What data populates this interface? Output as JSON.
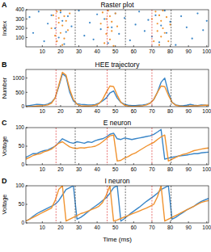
{
  "chart_data": [
    {
      "type": "scatter",
      "panel_label": "A",
      "title": "Raster plot",
      "ylabel": "Index",
      "xlim": [
        1,
        101
      ],
      "ylim": [
        0,
        400
      ],
      "xticks": [
        10,
        20,
        30,
        40,
        50,
        60,
        70,
        80,
        90,
        100
      ],
      "yticks": [
        100,
        200,
        300,
        400
      ],
      "marker": "dot",
      "vlines": [
        {
          "x": 17.5,
          "color": "#e03c3c",
          "line_style": "dashed"
        },
        {
          "x": 28,
          "color": "#333333",
          "line_style": "dashed"
        },
        {
          "x": 45.5,
          "color": "#e03c3c",
          "line_style": "dashed"
        },
        {
          "x": 55.5,
          "color": "#333333",
          "line_style": "dashed"
        },
        {
          "x": 70,
          "color": "#e03c3c",
          "line_style": "dashed"
        },
        {
          "x": 80.5,
          "color": "#333333",
          "line_style": "dashed"
        }
      ],
      "series": [
        {
          "color": "#3a86c8",
          "x": [
            3,
            5,
            8,
            11,
            13,
            15,
            17,
            19,
            20,
            21,
            22,
            23,
            24,
            26,
            30,
            33,
            36,
            38,
            40,
            42,
            44,
            46,
            48,
            50,
            52,
            55,
            58,
            61,
            63,
            66,
            68,
            70,
            72,
            74,
            75,
            77,
            78,
            80,
            83,
            86,
            89,
            92,
            95,
            98,
            100
          ],
          "values": [
            320,
            150,
            380,
            60,
            250,
            340,
            200,
            100,
            370,
            280,
            30,
            160,
            330,
            220,
            390,
            120,
            260,
            80,
            350,
            190,
            300,
            40,
            210,
            360,
            140,
            310,
            70,
            240,
            380,
            170,
            290,
            110,
            340,
            50,
            230,
            390,
            150,
            270,
            20,
            330,
            210,
            90,
            360,
            180,
            280
          ]
        },
        {
          "color": "#f0922e",
          "x": [
            15,
            16,
            17,
            18,
            18,
            19,
            19,
            20,
            20,
            21,
            21,
            22,
            22,
            23,
            24,
            25,
            42,
            43,
            44,
            45,
            45,
            46,
            46,
            47,
            47,
            48,
            48,
            49,
            50,
            51,
            70,
            71,
            72,
            73,
            73,
            74,
            74,
            75,
            75,
            76,
            76,
            77,
            78,
            79,
            80
          ],
          "values": [
            200,
            340,
            120,
            380,
            60,
            260,
            310,
            150,
            390,
            20,
            230,
            330,
            90,
            280,
            180,
            360,
            250,
            370,
            40,
            300,
            140,
            210,
            390,
            80,
            330,
            170,
            270,
            10,
            360,
            220,
            300,
            60,
            380,
            170,
            250,
            340,
            20,
            110,
            280,
            390,
            200,
            150,
            320,
            60,
            240
          ]
        }
      ]
    },
    {
      "type": "line",
      "panel_label": "B",
      "title": "HEE trajectory",
      "ylabel": "Number",
      "xlim": [
        1,
        101
      ],
      "ylim": [
        0,
        1300
      ],
      "xticks": [
        10,
        20,
        30,
        40,
        50,
        60,
        70,
        80,
        90,
        100
      ],
      "yticks": [
        0,
        500,
        1000
      ],
      "vlines": [
        {
          "x": 17.5,
          "color": "#e03c3c",
          "line_style": "dashed"
        },
        {
          "x": 28,
          "color": "#333333",
          "line_style": "dashed"
        },
        {
          "x": 45.5,
          "color": "#e03c3c",
          "line_style": "dashed"
        },
        {
          "x": 55.5,
          "color": "#333333",
          "line_style": "dashed"
        },
        {
          "x": 70,
          "color": "#e03c3c",
          "line_style": "dashed"
        },
        {
          "x": 80.5,
          "color": "#333333",
          "line_style": "dashed"
        }
      ],
      "x": [
        1,
        3,
        5,
        7,
        9,
        11,
        13,
        15,
        17,
        19,
        21,
        23,
        25,
        27,
        29,
        31,
        33,
        35,
        37,
        39,
        41,
        43,
        45,
        47,
        49,
        51,
        53,
        55,
        57,
        59,
        61,
        63,
        65,
        67,
        69,
        71,
        73,
        75,
        77,
        79,
        81,
        83,
        85,
        87,
        89,
        91,
        93,
        95,
        97,
        99,
        101
      ],
      "series": [
        {
          "color": "#3a86c8",
          "values": [
            20,
            40,
            60,
            80,
            70,
            60,
            90,
            150,
            300,
            700,
            1150,
            1050,
            500,
            200,
            100,
            80,
            70,
            60,
            60,
            70,
            120,
            200,
            300,
            480,
            550,
            300,
            150,
            80,
            50,
            40,
            40,
            50,
            60,
            80,
            120,
            250,
            500,
            850,
            1000,
            500,
            150,
            60,
            40,
            30,
            50,
            80,
            50,
            40,
            60,
            50,
            40
          ]
        },
        {
          "color": "#f0922e",
          "values": [
            0,
            0,
            10,
            20,
            30,
            40,
            60,
            120,
            300,
            750,
            1200,
            1100,
            600,
            250,
            80,
            30,
            20,
            20,
            30,
            50,
            100,
            250,
            500,
            720,
            700,
            400,
            150,
            50,
            20,
            10,
            10,
            20,
            30,
            60,
            120,
            250,
            500,
            720,
            700,
            400,
            150,
            50,
            20,
            10,
            10,
            20,
            30,
            30,
            40,
            50,
            50
          ]
        }
      ]
    },
    {
      "type": "line",
      "panel_label": "C",
      "title": "E neuron",
      "ylabel": "Voltage",
      "xlim": [
        1,
        101
      ],
      "ylim": [
        0,
        100
      ],
      "xticks": [
        10,
        20,
        30,
        40,
        50,
        60,
        70,
        80,
        90,
        100
      ],
      "yticks": [
        0,
        50,
        100
      ],
      "vlines": [
        {
          "x": 17.5,
          "color": "#e03c3c",
          "line_style": "dashed"
        },
        {
          "x": 28,
          "color": "#333333",
          "line_style": "dashed"
        },
        {
          "x": 45.5,
          "color": "#e03c3c",
          "line_style": "dashed"
        },
        {
          "x": 55.5,
          "color": "#333333",
          "line_style": "dashed"
        },
        {
          "x": 70,
          "color": "#e03c3c",
          "line_style": "dashed"
        },
        {
          "x": 80.5,
          "color": "#333333",
          "line_style": "dashed"
        }
      ],
      "x": [
        1,
        3,
        5,
        7,
        9,
        11,
        13,
        15,
        17,
        19,
        21,
        23,
        25,
        27,
        29,
        31,
        33,
        35,
        37,
        39,
        41,
        43,
        45,
        47,
        49,
        51,
        53,
        55,
        57,
        59,
        61,
        63,
        65,
        67,
        69,
        71,
        73,
        75,
        77,
        79,
        81,
        83,
        85,
        87,
        89,
        91,
        93,
        95,
        97,
        99,
        101
      ],
      "series": [
        {
          "color": "#3a86c8",
          "values": [
            20,
            25,
            30,
            30,
            35,
            38,
            40,
            45,
            50,
            60,
            70,
            65,
            60,
            58,
            62,
            60,
            58,
            62,
            60,
            65,
            68,
            70,
            75,
            82,
            85,
            70,
            68,
            72,
            70,
            68,
            70,
            72,
            74,
            76,
            78,
            82,
            88,
            95,
            15,
            18,
            20,
            22,
            24,
            25,
            26,
            28,
            30,
            30,
            32,
            33,
            34
          ]
        },
        {
          "color": "#f0922e",
          "values": [
            15,
            20,
            25,
            28,
            30,
            35,
            38,
            42,
            50,
            58,
            62,
            55,
            48,
            45,
            44,
            46,
            45,
            47,
            48,
            50,
            55,
            62,
            70,
            78,
            80,
            10,
            12,
            18,
            22,
            28,
            32,
            38,
            44,
            50,
            55,
            60,
            68,
            75,
            80,
            10,
            15,
            20,
            24,
            28,
            30,
            34,
            38,
            40,
            42,
            44,
            45
          ]
        }
      ]
    },
    {
      "type": "line",
      "panel_label": "D",
      "title": "I neuron",
      "ylabel": "Voltage",
      "xlabel": "Time (ms)",
      "xlim": [
        1,
        101
      ],
      "ylim": [
        0,
        100
      ],
      "xticks": [
        10,
        20,
        30,
        40,
        50,
        60,
        70,
        80,
        90,
        100
      ],
      "yticks": [
        0,
        50,
        100
      ],
      "vlines": [
        {
          "x": 17.5,
          "color": "#e03c3c",
          "line_style": "dashed"
        },
        {
          "x": 28,
          "color": "#333333",
          "line_style": "dashed"
        },
        {
          "x": 45.5,
          "color": "#e03c3c",
          "line_style": "dashed"
        },
        {
          "x": 55.5,
          "color": "#333333",
          "line_style": "dashed"
        },
        {
          "x": 70,
          "color": "#e03c3c",
          "line_style": "dashed"
        },
        {
          "x": 80.5,
          "color": "#333333",
          "line_style": "dashed"
        }
      ],
      "x": [
        1,
        3,
        5,
        7,
        9,
        11,
        13,
        15,
        17,
        19,
        21,
        23,
        25,
        27,
        29,
        31,
        33,
        35,
        37,
        39,
        41,
        43,
        45,
        47,
        49,
        51,
        53,
        55,
        57,
        59,
        61,
        63,
        65,
        67,
        69,
        71,
        73,
        75,
        77,
        79,
        81,
        83,
        85,
        87,
        89,
        91,
        93,
        95,
        97,
        99,
        101
      ],
      "series": [
        {
          "color": "#3a86c8",
          "values": [
            5,
            10,
            18,
            25,
            30,
            35,
            40,
            45,
            50,
            60,
            75,
            90,
            95,
            100,
            10,
            15,
            22,
            30,
            38,
            45,
            52,
            60,
            68,
            80,
            95,
            100,
            5,
            12,
            20,
            28,
            35,
            42,
            50,
            58,
            65,
            72,
            80,
            90,
            95,
            100,
            10,
            15,
            22,
            28,
            35,
            40,
            45,
            52,
            58,
            62,
            66
          ]
        },
        {
          "color": "#f0922e",
          "values": [
            5,
            10,
            15,
            20,
            25,
            30,
            35,
            40,
            60,
            90,
            100,
            5,
            10,
            15,
            20,
            25,
            28,
            32,
            36,
            40,
            45,
            55,
            75,
            100,
            5,
            8,
            12,
            16,
            20,
            24,
            28,
            32,
            36,
            40,
            45,
            50,
            70,
            100,
            5,
            10,
            15,
            20,
            25,
            30,
            35,
            40,
            45,
            50,
            55,
            58,
            60
          ]
        }
      ]
    }
  ]
}
